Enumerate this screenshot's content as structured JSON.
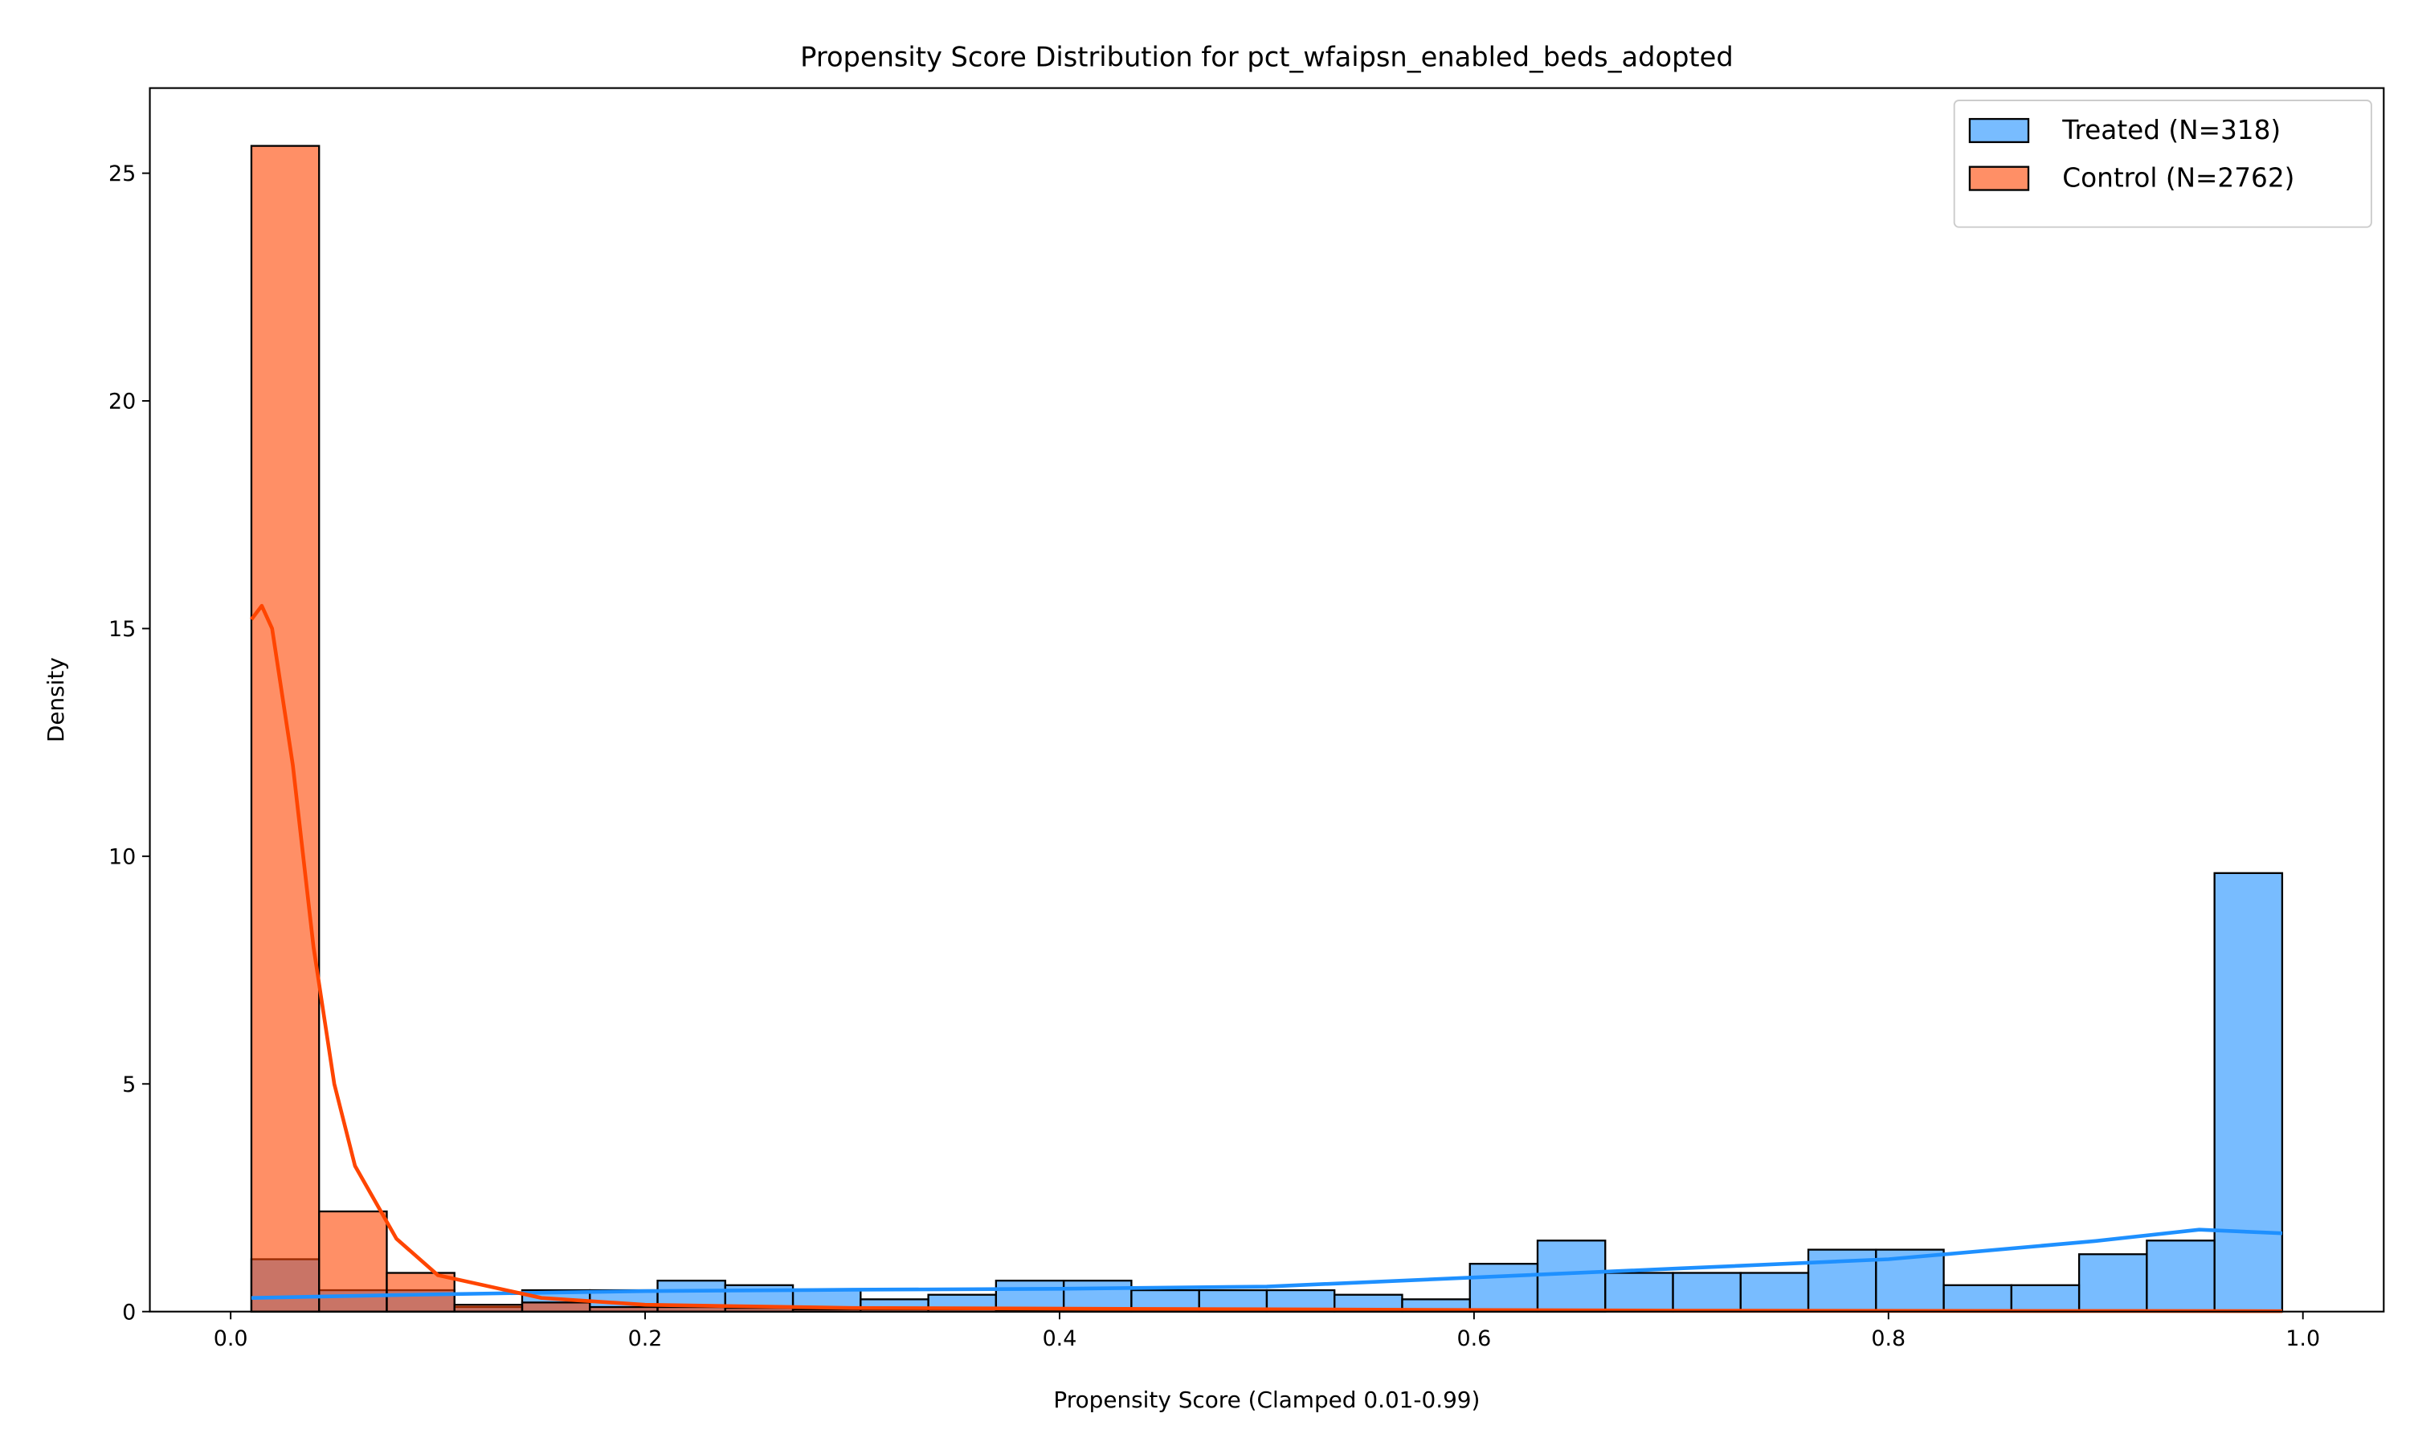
{
  "chart_data": {
    "type": "histogram",
    "title": "Propensity Score Distribution for pct_wfaipsn_enabled_beds_adopted",
    "x_label": "Propensity Score (Clamped 0.01-0.99)",
    "y_label": "Density",
    "bins": [
      0.01,
      0.042667,
      0.075333,
      0.108,
      0.140667,
      0.173333,
      0.206,
      0.238667,
      0.271333,
      0.304,
      0.336667,
      0.369333,
      0.402,
      0.434667,
      0.467333,
      0.5,
      0.532667,
      0.565333,
      0.598,
      0.630667,
      0.663333,
      0.696,
      0.728667,
      0.761333,
      0.794,
      0.826667,
      0.859333,
      0.892,
      0.924667,
      0.957333,
      0.99
    ],
    "series": [
      {
        "name": "Treated (N=318)",
        "color": "#1e90ff",
        "values": [
          1.15,
          0.47,
          0.47,
          0.1,
          0.47,
          0.47,
          0.68,
          0.58,
          0.47,
          0.27,
          0.37,
          0.68,
          0.68,
          0.47,
          0.47,
          0.47,
          0.37,
          0.27,
          1.05,
          1.56,
          0.85,
          0.85,
          0.85,
          1.36,
          1.36,
          0.58,
          0.58,
          1.26,
          1.56,
          9.63
        ],
        "kde": {
          "x": [
            0.01,
            0.1,
            0.2,
            0.3,
            0.4,
            0.5,
            0.6,
            0.7,
            0.8,
            0.9,
            0.95,
            0.99
          ],
          "y": [
            0.3,
            0.38,
            0.45,
            0.48,
            0.5,
            0.55,
            0.75,
            0.95,
            1.15,
            1.55,
            1.8,
            1.72
          ]
        }
      },
      {
        "name": "Control (N=2762)",
        "color": "#ff4500",
        "values": [
          25.6,
          2.2,
          0.85,
          0.15,
          0.2,
          0.1,
          0.1,
          0.08,
          0.05,
          0.05,
          0.05,
          0.03,
          0.03,
          0.03,
          0.03,
          0.03,
          0.02,
          0.02,
          0.01,
          0.01,
          0,
          0,
          0,
          0,
          0,
          0,
          0,
          0,
          0,
          0
        ],
        "kde": {
          "x": [
            0.01,
            0.015,
            0.02,
            0.03,
            0.04,
            0.05,
            0.06,
            0.08,
            0.1,
            0.15,
            0.2,
            0.3,
            0.5,
            0.7,
            0.99
          ],
          "y": [
            15.2,
            15.5,
            15.0,
            12,
            8,
            5,
            3.2,
            1.6,
            0.8,
            0.3,
            0.15,
            0.08,
            0.05,
            0.02,
            0.01
          ]
        }
      }
    ],
    "xlim": [
      -0.039,
      1.039
    ],
    "ylim": [
      0,
      26.87
    ],
    "xticks": [
      {
        "value": 0,
        "label": "0.0"
      },
      0.2,
      0.4,
      0.6,
      0.8,
      {
        "value": 1,
        "label": "1.0"
      }
    ],
    "yticks": [
      0,
      5,
      10,
      15,
      20,
      25
    ],
    "legend": "upper right"
  }
}
